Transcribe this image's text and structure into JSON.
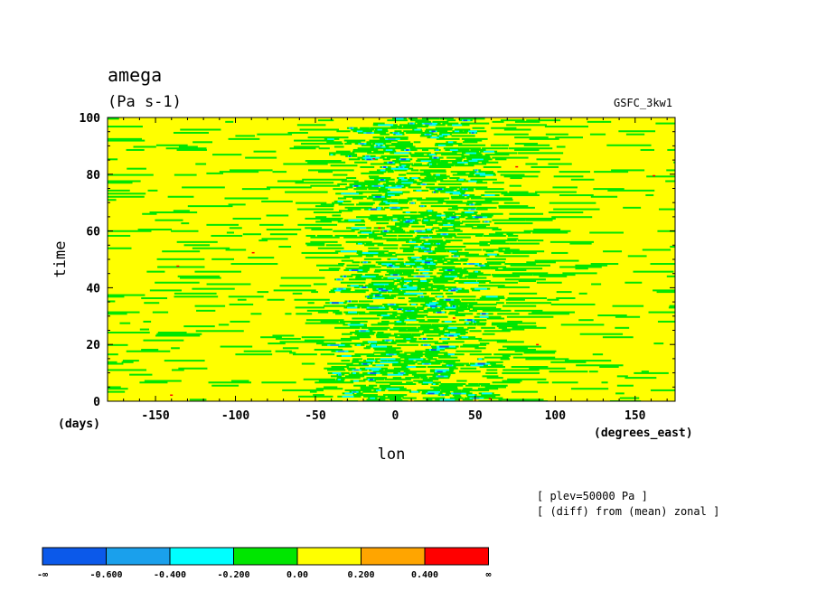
{
  "chart_data": {
    "type": "heatmap",
    "title": "amega",
    "units": "(Pa s-1)",
    "dataset": "GSFC_3kw1",
    "xlabel": "lon",
    "ylabel": "time",
    "x_units": "(degrees_east)",
    "y_units": "(days)",
    "xlim": [
      -180,
      175
    ],
    "ylim": [
      0,
      100
    ],
    "x_ticks": [
      "-150",
      "-100",
      "-50",
      "0",
      "50",
      "100",
      "150"
    ],
    "y_ticks": [
      "0",
      "20",
      "40",
      "60",
      "80",
      "100"
    ],
    "notes": [
      "[ plev=50000 Pa ]",
      "[ (diff) from (mean) zonal ]"
    ],
    "colorbar": {
      "colors": [
        "#0b59ea",
        "#1aa0ec",
        "#00ffff",
        "#00e600",
        "#ffff00",
        "#ffa500",
        "#ff0000"
      ],
      "labels": [
        "-∞",
        "-0.600",
        "-0.400",
        "-0.200",
        "0.00",
        "0.200",
        "0.400",
        "∞"
      ],
      "boundaries": [
        null,
        -0.6,
        -0.4,
        -0.2,
        0.0,
        0.2,
        0.4,
        null
      ]
    },
    "field_description": {
      "background_level": "0.00 to 0.200",
      "active_longitude_band": [
        -50,
        60
      ],
      "active_band_levels": "-0.600 to 0.00"
    }
  }
}
